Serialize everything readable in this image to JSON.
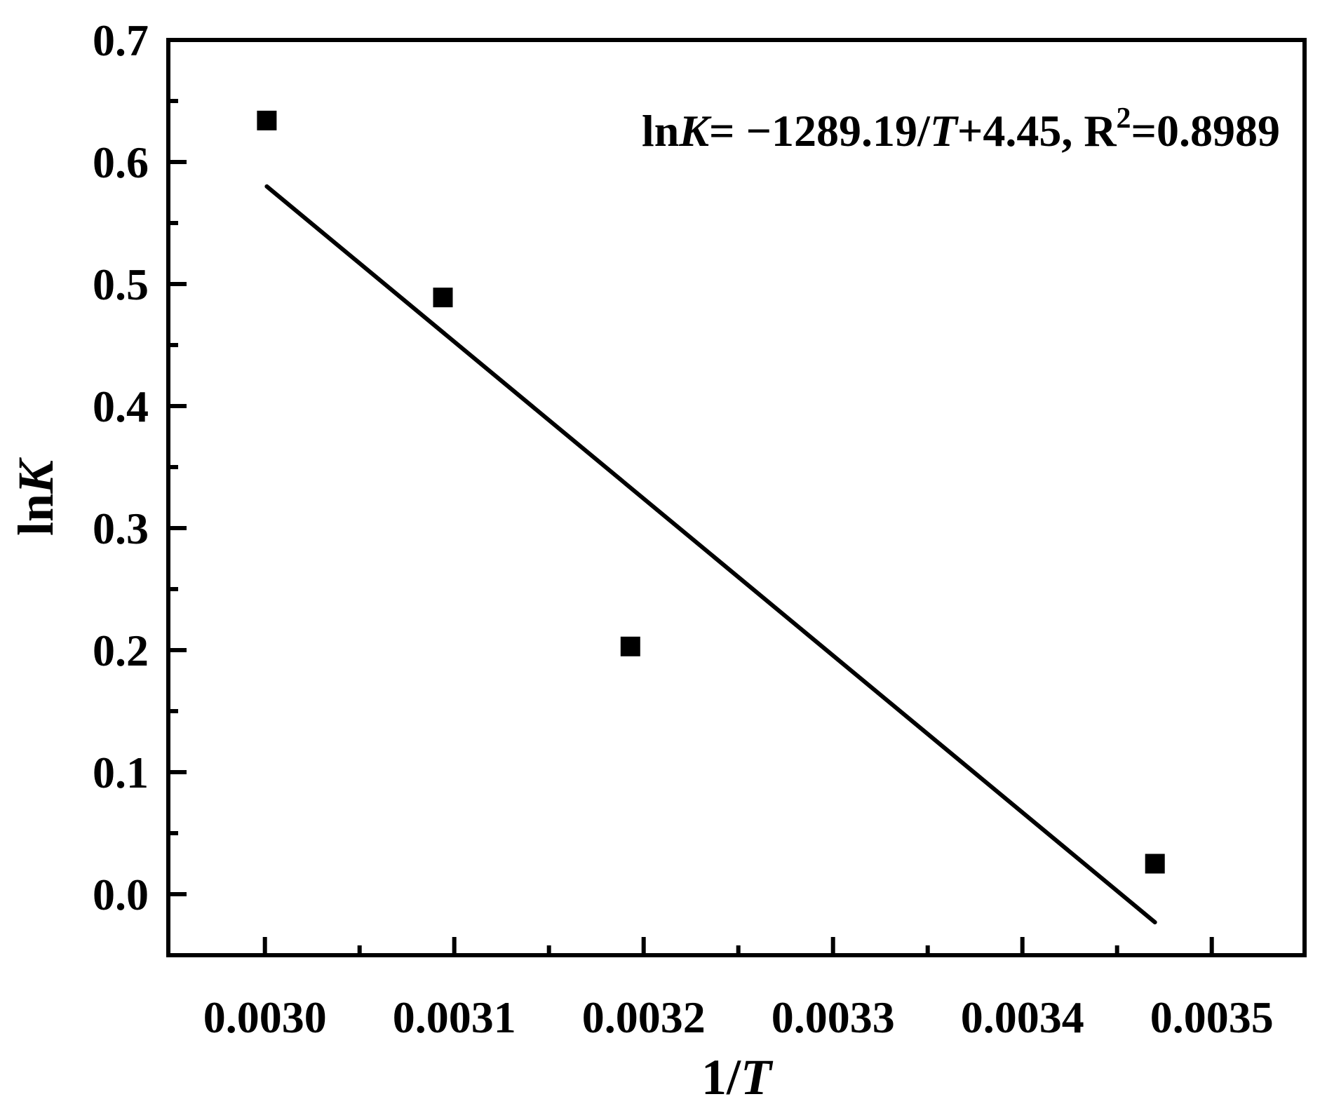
{
  "chart_data": {
    "type": "scatter",
    "title": "",
    "xlabel_prefix": "1/",
    "xlabel_var": "T",
    "ylabel_prefix": "ln",
    "ylabel_var": "K",
    "xlim": [
      0.002949,
      0.003549
    ],
    "ylim": [
      -0.05,
      0.7
    ],
    "x_ticks": [
      0.003,
      0.0031,
      0.0032,
      0.0033,
      0.0034,
      0.0035
    ],
    "x_tick_labels": [
      "0.0030",
      "0.0031",
      "0.0032",
      "0.0033",
      "0.0034",
      "0.0035"
    ],
    "y_ticks": [
      0.0,
      0.1,
      0.2,
      0.3,
      0.4,
      0.5,
      0.6,
      0.7
    ],
    "y_tick_labels": [
      "0.0",
      "0.1",
      "0.2",
      "0.3",
      "0.4",
      "0.5",
      "0.6",
      "0.7"
    ],
    "grid": false,
    "legend": "none",
    "points": [
      {
        "x": 0.003001,
        "y": 0.634
      },
      {
        "x": 0.003094,
        "y": 0.489
      },
      {
        "x": 0.003193,
        "y": 0.203
      },
      {
        "x": 0.00347,
        "y": 0.025
      }
    ],
    "fit_line": {
      "x": [
        0.003001,
        0.00347
      ],
      "y": [
        0.58,
        -0.023
      ]
    },
    "annotation": {
      "p1": "ln",
      "p2": "K",
      "p3": "= −1289.19/",
      "p4": "T",
      "p5": "+4.45, R",
      "sup": "2",
      "p6": "=0.8989"
    },
    "colors": {
      "marks": "#000000",
      "background": "#ffffff"
    }
  }
}
